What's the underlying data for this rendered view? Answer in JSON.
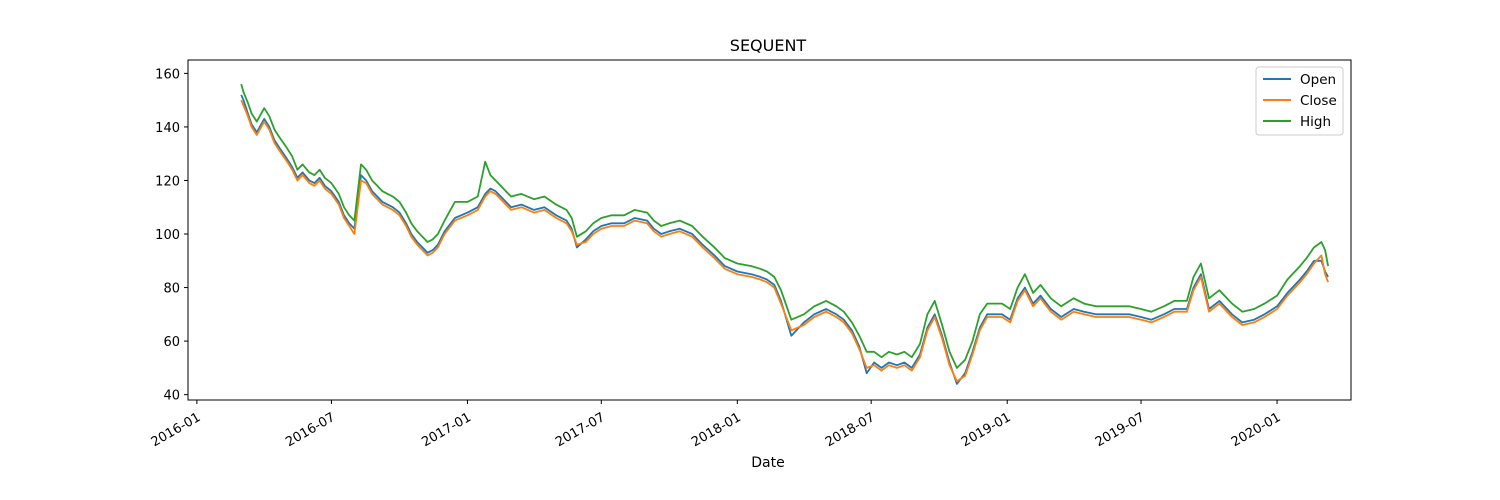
{
  "chart_data": {
    "type": "line",
    "title": "SEQUENT",
    "xlabel": "Date",
    "ylabel": "",
    "xlim": [
      "2015-12-20",
      "2020-04-10"
    ],
    "ylim": [
      38,
      165
    ],
    "x_ticks": [
      "2016-01-01",
      "2016-07-01",
      "2017-01-01",
      "2017-07-01",
      "2018-01-01",
      "2018-07-01",
      "2019-01-01",
      "2019-07-01",
      "2020-01-01"
    ],
    "x_tick_labels": [
      "2016-01",
      "2016-07",
      "2017-01",
      "2017-07",
      "2018-01",
      "2018-07",
      "2019-01",
      "2019-07",
      "2020-01"
    ],
    "y_ticks": [
      40,
      60,
      80,
      100,
      120,
      140,
      160
    ],
    "legend_position": "top-right",
    "grid": false,
    "colors": {
      "Open": "#1f77b4",
      "Close": "#ff7f0e",
      "High": "#2ca02c"
    },
    "dates": [
      "2016-03-01",
      "2016-03-04",
      "2016-03-10",
      "2016-03-15",
      "2016-03-22",
      "2016-04-01",
      "2016-04-08",
      "2016-04-15",
      "2016-04-22",
      "2016-05-02",
      "2016-05-09",
      "2016-05-16",
      "2016-05-23",
      "2016-06-01",
      "2016-06-08",
      "2016-06-15",
      "2016-06-22",
      "2016-07-01",
      "2016-07-11",
      "2016-07-18",
      "2016-07-25",
      "2016-08-01",
      "2016-08-10",
      "2016-08-17",
      "2016-08-25",
      "2016-09-01",
      "2016-09-08",
      "2016-09-15",
      "2016-09-22",
      "2016-10-01",
      "2016-10-10",
      "2016-10-17",
      "2016-10-25",
      "2016-11-01",
      "2016-11-08",
      "2016-11-15",
      "2016-11-22",
      "2016-12-01",
      "2016-12-15",
      "2017-01-01",
      "2017-01-15",
      "2017-01-25",
      "2017-02-01",
      "2017-02-08",
      "2017-02-15",
      "2017-02-22",
      "2017-03-01",
      "2017-03-15",
      "2017-04-01",
      "2017-04-15",
      "2017-05-01",
      "2017-05-15",
      "2017-05-22",
      "2017-05-29",
      "2017-06-10",
      "2017-06-20",
      "2017-07-01",
      "2017-07-15",
      "2017-08-01",
      "2017-08-15",
      "2017-09-01",
      "2017-09-10",
      "2017-09-20",
      "2017-10-01",
      "2017-10-15",
      "2017-11-01",
      "2017-11-15",
      "2017-12-01",
      "2017-12-15",
      "2018-01-01",
      "2018-01-20",
      "2018-02-01",
      "2018-02-10",
      "2018-02-20",
      "2018-03-01",
      "2018-03-15",
      "2018-04-01",
      "2018-04-15",
      "2018-05-01",
      "2018-05-15",
      "2018-05-25",
      "2018-06-05",
      "2018-06-15",
      "2018-06-25",
      "2018-07-05",
      "2018-07-15",
      "2018-07-25",
      "2018-08-05",
      "2018-08-15",
      "2018-08-25",
      "2018-09-05",
      "2018-09-15",
      "2018-09-25",
      "2018-10-05",
      "2018-10-15",
      "2018-10-25",
      "2018-11-05",
      "2018-11-15",
      "2018-11-25",
      "2018-12-05",
      "2018-12-15",
      "2018-12-25",
      "2019-01-05",
      "2019-01-15",
      "2019-01-25",
      "2019-02-05",
      "2019-02-15",
      "2019-03-01",
      "2019-03-15",
      "2019-04-01",
      "2019-04-15",
      "2019-05-01",
      "2019-05-15",
      "2019-06-01",
      "2019-06-15",
      "2019-07-01",
      "2019-07-15",
      "2019-08-01",
      "2019-08-15",
      "2019-09-01",
      "2019-09-10",
      "2019-09-20",
      "2019-10-01",
      "2019-10-15",
      "2019-11-01",
      "2019-11-15",
      "2019-12-01",
      "2019-12-15",
      "2020-01-01",
      "2020-01-15",
      "2020-02-01",
      "2020-02-10",
      "2020-02-20",
      "2020-03-01",
      "2020-03-06",
      "2020-03-10"
    ],
    "series": [
      {
        "name": "Open",
        "values": [
          152,
          150,
          145,
          141,
          138,
          143,
          140,
          135,
          132,
          128,
          125,
          121,
          123,
          120,
          119,
          121,
          118,
          116,
          112,
          107,
          104,
          102,
          122,
          120,
          116,
          114,
          112,
          111,
          110,
          108,
          104,
          100,
          97,
          95,
          93,
          94,
          96,
          101,
          106,
          108,
          110,
          115,
          117,
          116,
          114,
          112,
          110,
          111,
          109,
          110,
          107,
          105,
          102,
          95,
          98,
          101,
          103,
          104,
          104,
          106,
          105,
          102,
          100,
          101,
          102,
          100,
          96,
          92,
          88,
          86,
          85,
          84,
          83,
          81,
          75,
          62,
          67,
          70,
          72,
          70,
          68,
          64,
          58,
          48,
          52,
          50,
          52,
          51,
          52,
          50,
          55,
          65,
          70,
          62,
          52,
          44,
          48,
          56,
          65,
          70,
          70,
          70,
          68,
          76,
          80,
          74,
          77,
          72,
          69,
          72,
          71,
          70,
          70,
          70,
          70,
          69,
          68,
          70,
          72,
          72,
          80,
          85,
          72,
          75,
          70,
          67,
          68,
          70,
          73,
          78,
          83,
          86,
          90,
          90,
          86,
          84
        ]
      },
      {
        "name": "Close",
        "values": [
          150,
          148,
          144,
          140,
          137,
          142,
          139,
          134,
          131,
          127,
          124,
          120,
          122,
          119,
          118,
          120,
          117,
          115,
          111,
          106,
          103,
          100,
          120,
          119,
          115,
          113,
          111,
          110,
          109,
          107,
          103,
          99,
          96,
          94,
          92,
          93,
          95,
          100,
          105,
          107,
          109,
          114,
          116,
          115,
          113,
          111,
          109,
          110,
          108,
          109,
          106,
          104,
          101,
          96,
          97,
          100,
          102,
          103,
          103,
          105,
          104,
          101,
          99,
          100,
          101,
          99,
          95,
          91,
          87,
          85,
          84,
          83,
          82,
          80,
          74,
          64,
          66,
          69,
          71,
          69,
          67,
          63,
          57,
          50,
          51,
          49,
          51,
          50,
          51,
          49,
          54,
          64,
          69,
          61,
          51,
          45,
          47,
          55,
          64,
          69,
          69,
          69,
          67,
          75,
          79,
          73,
          76,
          71,
          68,
          71,
          70,
          69,
          69,
          69,
          69,
          68,
          67,
          69,
          71,
          71,
          79,
          84,
          71,
          74,
          69,
          66,
          67,
          69,
          72,
          77,
          82,
          85,
          89,
          92,
          85,
          82
        ]
      },
      {
        "name": "High",
        "values": [
          156,
          153,
          149,
          145,
          142,
          147,
          144,
          139,
          136,
          132,
          129,
          124,
          126,
          123,
          122,
          124,
          121,
          119,
          115,
          110,
          107,
          105,
          126,
          124,
          120,
          118,
          116,
          115,
          114,
          112,
          108,
          104,
          101,
          99,
          97,
          98,
          100,
          105,
          112,
          112,
          114,
          127,
          122,
          120,
          118,
          116,
          114,
          115,
          113,
          114,
          111,
          109,
          106,
          99,
          101,
          104,
          106,
          107,
          107,
          109,
          108,
          105,
          103,
          104,
          105,
          103,
          99,
          95,
          91,
          89,
          88,
          87,
          86,
          84,
          79,
          68,
          70,
          73,
          75,
          73,
          71,
          67,
          62,
          56,
          56,
          54,
          56,
          55,
          56,
          54,
          59,
          70,
          75,
          66,
          56,
          50,
          53,
          60,
          70,
          74,
          74,
          74,
          72,
          80,
          85,
          78,
          81,
          76,
          73,
          76,
          74,
          73,
          73,
          73,
          73,
          72,
          71,
          73,
          75,
          75,
          84,
          89,
          76,
          79,
          74,
          71,
          72,
          74,
          77,
          83,
          88,
          91,
          95,
          97,
          94,
          88
        ]
      }
    ]
  }
}
